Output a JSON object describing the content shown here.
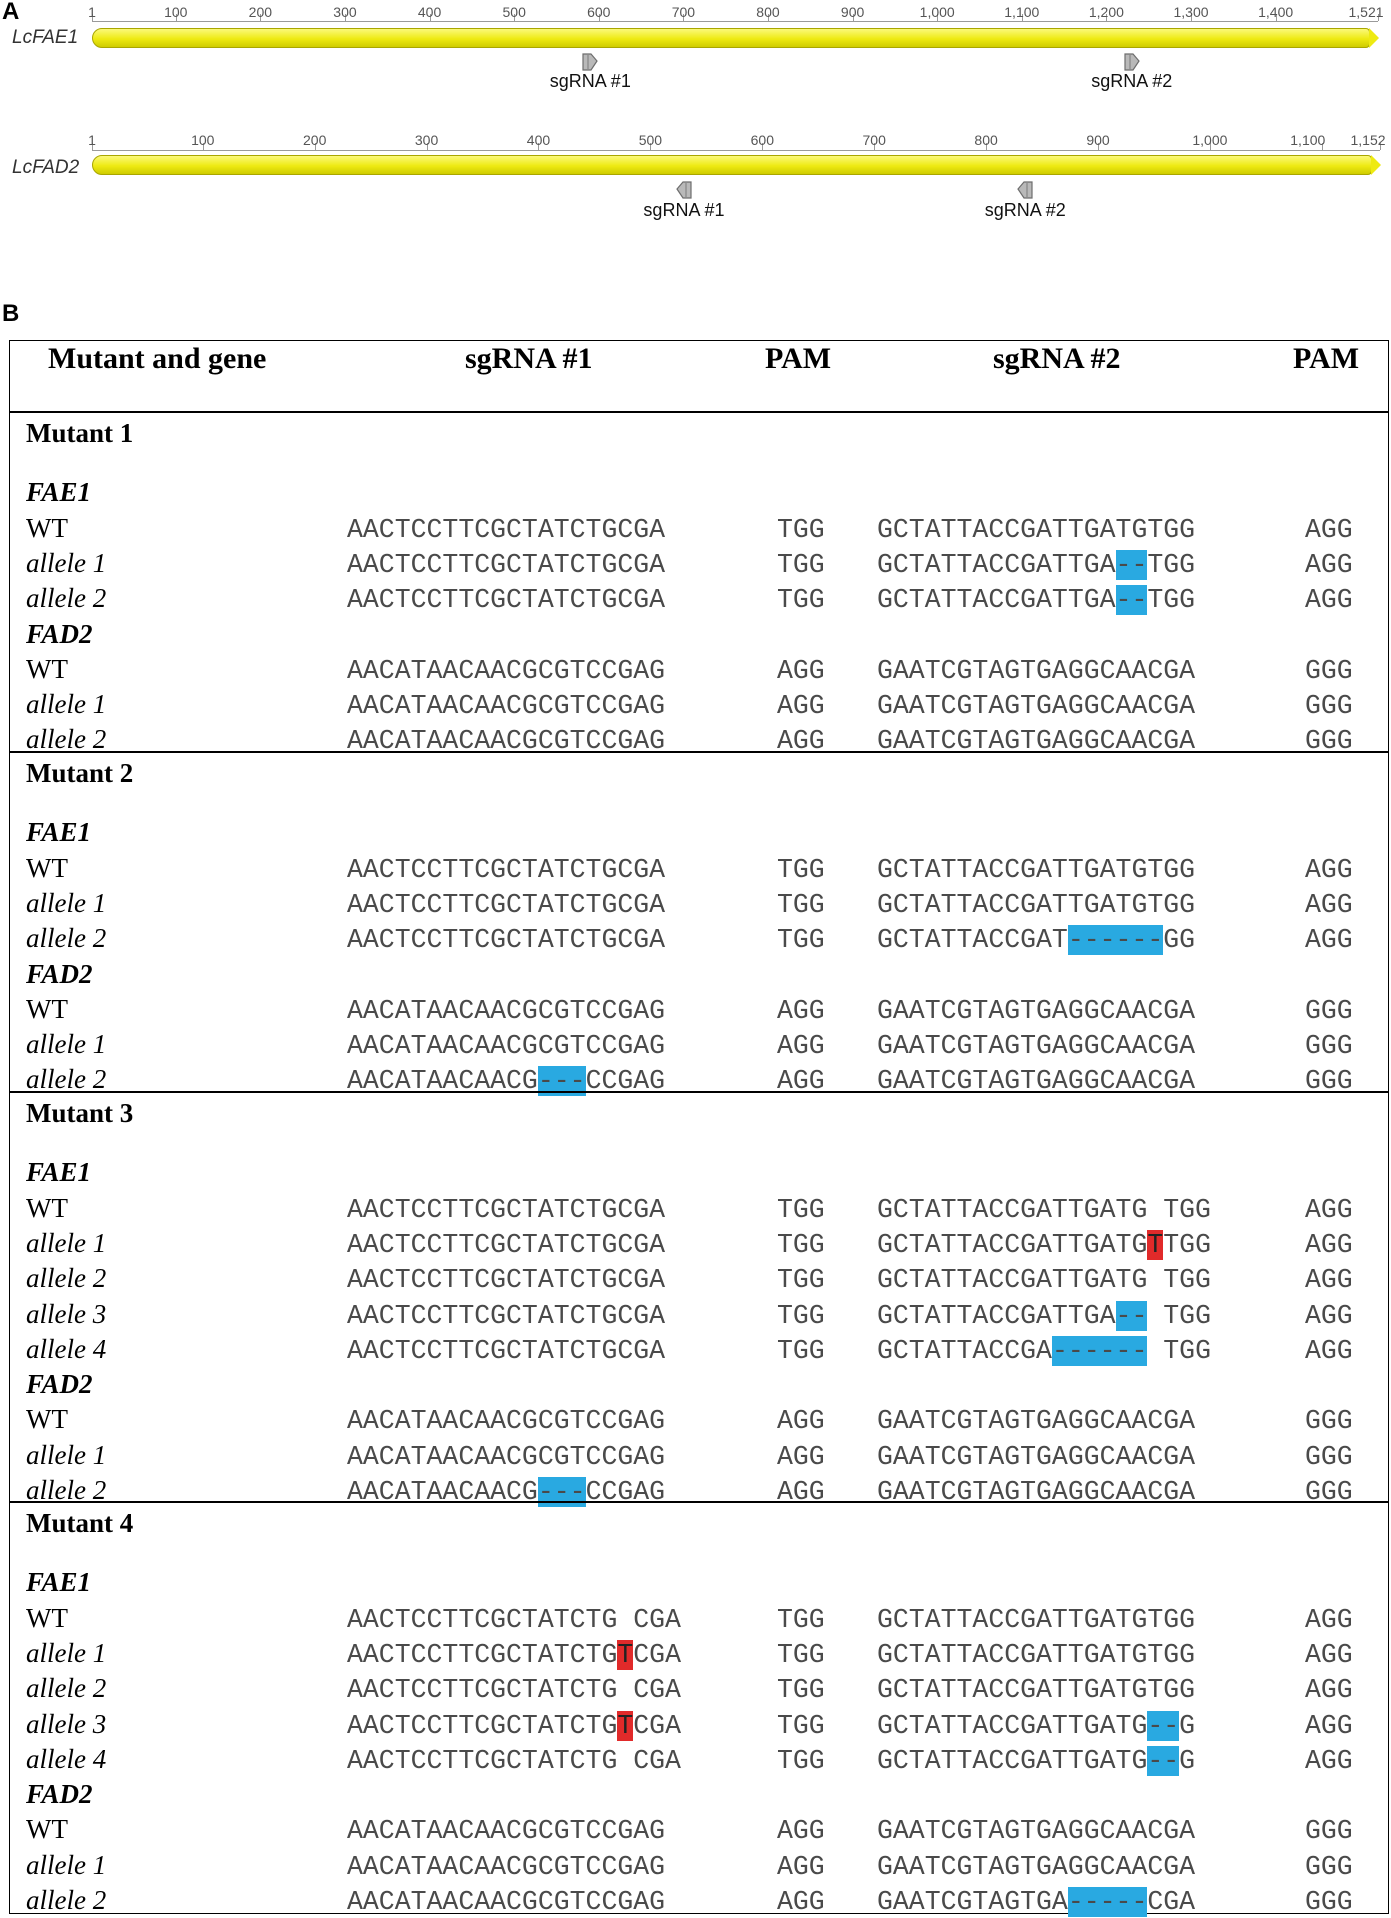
{
  "panelA": {
    "letter": "A",
    "tracks": [
      {
        "gene": "LcFAE1",
        "ticks": [
          "1",
          "100",
          "200",
          "300",
          "400",
          "500",
          "600",
          "700",
          "800",
          "900",
          "1,000",
          "1,100",
          "1,200",
          "1,300",
          "1,400",
          "1,521"
        ],
        "sgrnas": [
          {
            "label": "sgRNA #1",
            "position": 590
          },
          {
            "label": "sgRNA #2",
            "position": 1230
          }
        ]
      },
      {
        "gene": "LcFAD2",
        "ticks": [
          "1",
          "100",
          "200",
          "300",
          "400",
          "500",
          "600",
          "700",
          "800",
          "900",
          "1,000",
          "1,100",
          "1,152"
        ],
        "sgrnas": [
          {
            "label": "sgRNA #1",
            "position": 530
          },
          {
            "label": "sgRNA #2",
            "position": 835
          }
        ]
      }
    ]
  },
  "panelB": {
    "letter": "B",
    "headers": {
      "mutant": "Mutant and gene",
      "sg1": "sgRNA #1",
      "pam1": "PAM",
      "sg2": "sgRNA #2",
      "pam2": "PAM"
    },
    "mutants": [
      {
        "title": "Mutant 1",
        "genes": [
          {
            "name": "FAE1",
            "rows": [
              {
                "label": "WT",
                "sg1": "AACTCCTTCGCTATCTGCGA",
                "pam1": "TGG",
                "sg2": "GCTATTACCGATTGATGTGG",
                "pam2": "AGG"
              },
              {
                "label": "allele 1",
                "sg1": "AACTCCTTCGCTATCTGCGA",
                "pam1": "TGG",
                "sg2": "GCTATTACCGATTGA--TGG",
                "pam2": "AGG"
              },
              {
                "label": "allele 2",
                "sg1": "AACTCCTTCGCTATCTGCGA",
                "pam1": "TGG",
                "sg2": "GCTATTACCGATTGA--TGG",
                "pam2": "AGG"
              }
            ]
          },
          {
            "name": "FAD2",
            "rows": [
              {
                "label": "WT",
                "sg1": "AACATAACAACGCGTCCGAG",
                "pam1": "AGG",
                "sg2": "GAATCGTAGTGAGGCAACGA",
                "pam2": "GGG"
              },
              {
                "label": "allele 1",
                "sg1": "AACATAACAACGCGTCCGAG",
                "pam1": "AGG",
                "sg2": "GAATCGTAGTGAGGCAACGA",
                "pam2": "GGG"
              },
              {
                "label": "allele 2",
                "sg1": "AACATAACAACGCGTCCGAG",
                "pam1": "AGG",
                "sg2": "GAATCGTAGTGAGGCAACGA",
                "pam2": "GGG"
              }
            ]
          }
        ]
      },
      {
        "title": "Mutant 2",
        "genes": [
          {
            "name": "FAE1",
            "rows": [
              {
                "label": "WT",
                "sg1": "AACTCCTTCGCTATCTGCGA",
                "pam1": "TGG",
                "sg2": "GCTATTACCGATTGATGTGG",
                "pam2": "AGG"
              },
              {
                "label": "allele 1",
                "sg1": "AACTCCTTCGCTATCTGCGA",
                "pam1": "TGG",
                "sg2": "GCTATTACCGATTGATGTGG",
                "pam2": "AGG"
              },
              {
                "label": "allele 2",
                "sg1": "AACTCCTTCGCTATCTGCGA",
                "pam1": "TGG",
                "sg2": "GCTATTACCGAT------GG",
                "pam2": "AGG"
              }
            ]
          },
          {
            "name": "FAD2",
            "rows": [
              {
                "label": "WT",
                "sg1": "AACATAACAACGCGTCCGAG",
                "pam1": "AGG",
                "sg2": "GAATCGTAGTGAGGCAACGA",
                "pam2": "GGG"
              },
              {
                "label": "allele 1",
                "sg1": "AACATAACAACGCGTCCGAG",
                "pam1": "AGG",
                "sg2": "GAATCGTAGTGAGGCAACGA",
                "pam2": "GGG"
              },
              {
                "label": "allele 2",
                "sg1": "AACATAACAACG---CCGAG",
                "pam1": "AGG",
                "sg2": "GAATCGTAGTGAGGCAACGA",
                "pam2": "GGG"
              }
            ]
          }
        ]
      },
      {
        "title": "Mutant 3",
        "genes": [
          {
            "name": "FAE1",
            "rows": [
              {
                "label": "WT",
                "sg1": "AACTCCTTCGCTATCTGCGA",
                "pam1": "TGG",
                "sg2": "GCTATTACCGATTGATG TGG",
                "pam2": "AGG"
              },
              {
                "label": "allele 1",
                "sg1": "AACTCCTTCGCTATCTGCGA",
                "pam1": "TGG",
                "sg2": "GCTATTACCGATTGATGTTGG",
                "pam2": "AGG"
              },
              {
                "label": "allele 2",
                "sg1": "AACTCCTTCGCTATCTGCGA",
                "pam1": "TGG",
                "sg2": "GCTATTACCGATTGATG TGG",
                "pam2": "AGG"
              },
              {
                "label": "allele 3",
                "sg1": "AACTCCTTCGCTATCTGCGA",
                "pam1": "TGG",
                "sg2": "GCTATTACCGATTGA-- TGG",
                "pam2": "AGG"
              },
              {
                "label": "allele 4",
                "sg1": "AACTCCTTCGCTATCTGCGA",
                "pam1": "TGG",
                "sg2": "GCTATTACCGA------ TGG",
                "pam2": "AGG"
              }
            ]
          },
          {
            "name": "FAD2",
            "rows": [
              {
                "label": "WT",
                "sg1": "AACATAACAACGCGTCCGAG",
                "pam1": "AGG",
                "sg2": "GAATCGTAGTGAGGCAACGA",
                "pam2": "GGG"
              },
              {
                "label": "allele 1",
                "sg1": "AACATAACAACGCGTCCGAG",
                "pam1": "AGG",
                "sg2": "GAATCGTAGTGAGGCAACGA",
                "pam2": "GGG"
              },
              {
                "label": "allele 2",
                "sg1": "AACATAACAACG---CCGAG",
                "pam1": "AGG",
                "sg2": "GAATCGTAGTGAGGCAACGA",
                "pam2": "GGG"
              }
            ]
          }
        ]
      },
      {
        "title": "Mutant 4",
        "genes": [
          {
            "name": "FAE1",
            "rows": [
              {
                "label": "WT",
                "sg1": "AACTCCTTCGCTATCTG CGA",
                "pam1": "TGG",
                "sg2": "GCTATTACCGATTGATGTGG",
                "pam2": "AGG"
              },
              {
                "label": "allele 1",
                "sg1": "AACTCCTTCGCTATCTGTCGA",
                "pam1": "TGG",
                "sg2": "GCTATTACCGATTGATGTGG",
                "pam2": "AGG"
              },
              {
                "label": "allele 2",
                "sg1": "AACTCCTTCGCTATCTG CGA",
                "pam1": "TGG",
                "sg2": "GCTATTACCGATTGATGTGG",
                "pam2": "AGG"
              },
              {
                "label": "allele 3",
                "sg1": "AACTCCTTCGCTATCTGTCGA",
                "pam1": "TGG",
                "sg2": "GCTATTACCGATTGATG--G",
                "pam2": "AGG"
              },
              {
                "label": "allele 4",
                "sg1": "AACTCCTTCGCTATCTG CGA",
                "pam1": "TGG",
                "sg2": "GCTATTACCGATTGATG--G",
                "pam2": "AGG"
              }
            ]
          },
          {
            "name": "FAD2",
            "rows": [
              {
                "label": "WT",
                "sg1": "AACATAACAACGCGTCCGAG",
                "pam1": "AGG",
                "sg2": "GAATCGTAGTGAGGCAACGA",
                "pam2": "GGG"
              },
              {
                "label": "allele 1",
                "sg1": "AACATAACAACGCGTCCGAG",
                "pam1": "AGG",
                "sg2": "GAATCGTAGTGAGGCAACGA",
                "pam2": "GGG"
              },
              {
                "label": "allele 2",
                "sg1": "AACATAACAACGCGTCCGAG",
                "pam1": "AGG",
                "sg2": "GAATCGTAGTGA-----CGA",
                "pam2": "GGG"
              }
            ]
          }
        ]
      }
    ],
    "highlights": {
      "blue": "#29a9e1",
      "red": "#e12a2a"
    }
  }
}
